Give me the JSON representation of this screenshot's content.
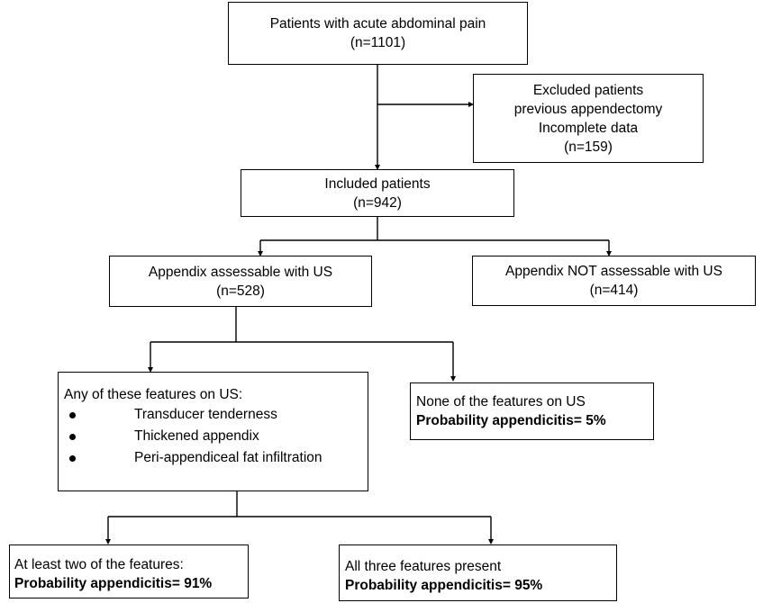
{
  "nodes": {
    "total": {
      "title": "Patients with acute abdominal pain",
      "count": "(n=1101)"
    },
    "excluded": {
      "lines": [
        "Excluded patients",
        "previous appendectomy",
        "Incomplete data",
        "(n=159)"
      ]
    },
    "included": {
      "title": "Included patients",
      "count": "(n=942)"
    },
    "assessable": {
      "title": "Appendix assessable with US",
      "count": "(n=528)"
    },
    "not_assessable": {
      "title": "Appendix NOT assessable with US",
      "count": "(n=414)"
    },
    "features": {
      "title": "Any of these features on US:",
      "items": [
        "Transducer tenderness",
        "Thickened appendix",
        "Peri-appendiceal fat infiltration"
      ]
    },
    "none": {
      "title": "None of the features on US",
      "probability": "Probability appendicitis= 5%"
    },
    "two": {
      "title": "At least two of the features:",
      "probability": "Probability appendicitis= 91%"
    },
    "three": {
      "title": "All three features present",
      "probability": "Probability appendicitis= 95%"
    }
  }
}
